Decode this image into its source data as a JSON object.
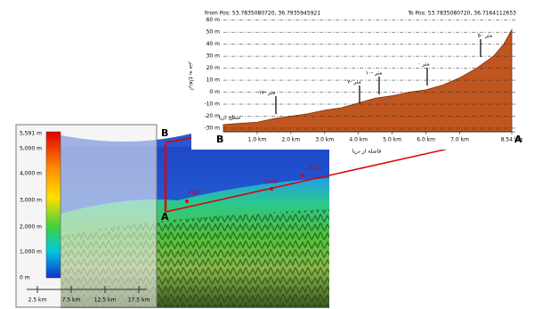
{
  "chart_data": {
    "type": "area",
    "from_label": "From Pos: 53.7835080720, 36.7935945921",
    "to_label": "To Pos: 53.7835080720, 36.7164112653",
    "ylabel": "ارتفاع به متر",
    "xlabel": "فاصله از دریا",
    "start_label": "B",
    "end_label": "A",
    "x": [
      0,
      0.5,
      1,
      1.5,
      2,
      2.5,
      3,
      3.5,
      4,
      4.5,
      5,
      5.5,
      6,
      6.5,
      7,
      7.5,
      8,
      8.3,
      8.54
    ],
    "values": [
      -27,
      -26,
      -25,
      -22,
      -20,
      -18,
      -15,
      -13,
      -9,
      -5,
      -3,
      0,
      2,
      6,
      12,
      20,
      30,
      40,
      52
    ],
    "color": "#c0561f",
    "grid": true,
    "xlim": [
      0,
      8.54
    ],
    "ylim": [
      -33,
      62
    ],
    "xticks": [
      {
        "value": 1,
        "label": "1.0 km"
      },
      {
        "value": 2,
        "label": "2.0 km"
      },
      {
        "value": 3,
        "label": "3.0 km"
      },
      {
        "value": 4,
        "label": "4.0 km"
      },
      {
        "value": 5,
        "label": "5.0 km"
      },
      {
        "value": 6,
        "label": "6.0 km"
      },
      {
        "value": 7,
        "label": "7.0 km"
      },
      {
        "value": 8.54,
        "label": "8.54 km"
      }
    ],
    "yticks": [
      {
        "value": 60,
        "label": "60 m"
      },
      {
        "value": 50,
        "label": "50 m"
      },
      {
        "value": 40,
        "label": "40 m"
      },
      {
        "value": 30,
        "label": "30 m"
      },
      {
        "value": 20,
        "label": "20 m"
      },
      {
        "value": 10,
        "label": "10 m"
      },
      {
        "value": 0,
        "label": "0 m"
      },
      {
        "value": -10,
        "label": "-10 m"
      },
      {
        "value": -20,
        "label": "-20 m"
      },
      {
        "value": -30,
        "label": "-30 m"
      }
    ],
    "annotations": [
      "سطح دریا",
      "۱۷- متر",
      "۷- متر",
      "۱۰- متر",
      "۰ متر",
      "۵۰ متر"
    ]
  },
  "map": {
    "legend_labels": [
      "5,591 m",
      "5,000 m",
      "4,000 m",
      "3,000 m",
      "2,000 m",
      "1,000 m",
      "0 m"
    ],
    "scale_labels": [
      "2.5 km",
      "7.5 km",
      "12.5 km",
      "17.5 km"
    ],
    "places": [
      "بندرگز",
      "نوکنده",
      "کلوکاه"
    ],
    "point_a": "A",
    "point_b": "B"
  }
}
